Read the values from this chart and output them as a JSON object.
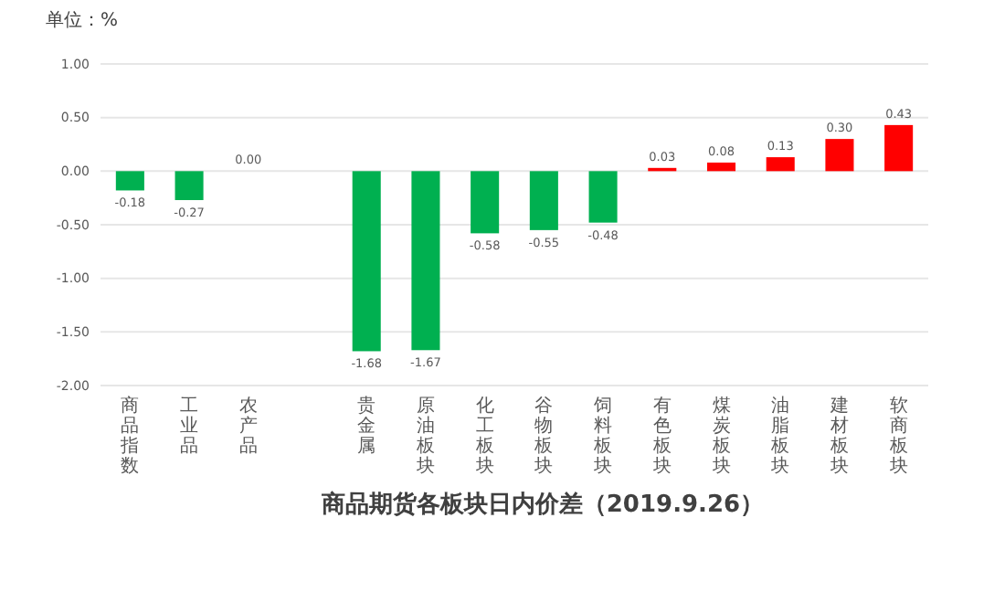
{
  "chart_data": {
    "type": "bar",
    "title": "商品期货各板块日内价差（2019.9.26）",
    "ylabel": "单位：%",
    "categories": [
      "商品指数",
      "工业品",
      "农产品",
      null,
      "贵金属",
      "原油板块",
      "化工板块",
      "谷物板块",
      "饲料板块",
      "有色板块",
      "煤炭板块",
      "油脂板块",
      "建材板块",
      "软商板块"
    ],
    "values": [
      -0.18,
      -0.27,
      0.0,
      null,
      -1.68,
      -1.67,
      -0.58,
      -0.55,
      -0.48,
      0.03,
      0.08,
      0.13,
      0.3,
      0.43
    ],
    "colors": [
      "#00b050",
      "#00b050",
      "#00b050",
      null,
      "#00b050",
      "#00b050",
      "#00b050",
      "#00b050",
      "#00b050",
      "#ff0000",
      "#ff0000",
      "#ff0000",
      "#ff0000",
      "#ff0000"
    ],
    "value_labels": [
      "-0.18",
      "-0.27",
      "0.00",
      null,
      "-1.68",
      "-1.67",
      "-0.58",
      "-0.55",
      "-0.48",
      "0.03",
      "0.08",
      "0.13",
      "0.30",
      "0.43"
    ],
    "ylim": [
      -2,
      1
    ],
    "yticks": [
      {
        "value": 1,
        "label": "1.00"
      },
      {
        "value": 0.5,
        "label": "0.50"
      },
      {
        "value": 0,
        "label": "0.00"
      },
      {
        "value": -0.5,
        "label": "-0.50"
      },
      {
        "value": -1,
        "label": "-1.00"
      },
      {
        "value": -1.5,
        "label": "-1.50"
      },
      {
        "value": -2,
        "label": "-2.00"
      }
    ],
    "grid": "y"
  }
}
